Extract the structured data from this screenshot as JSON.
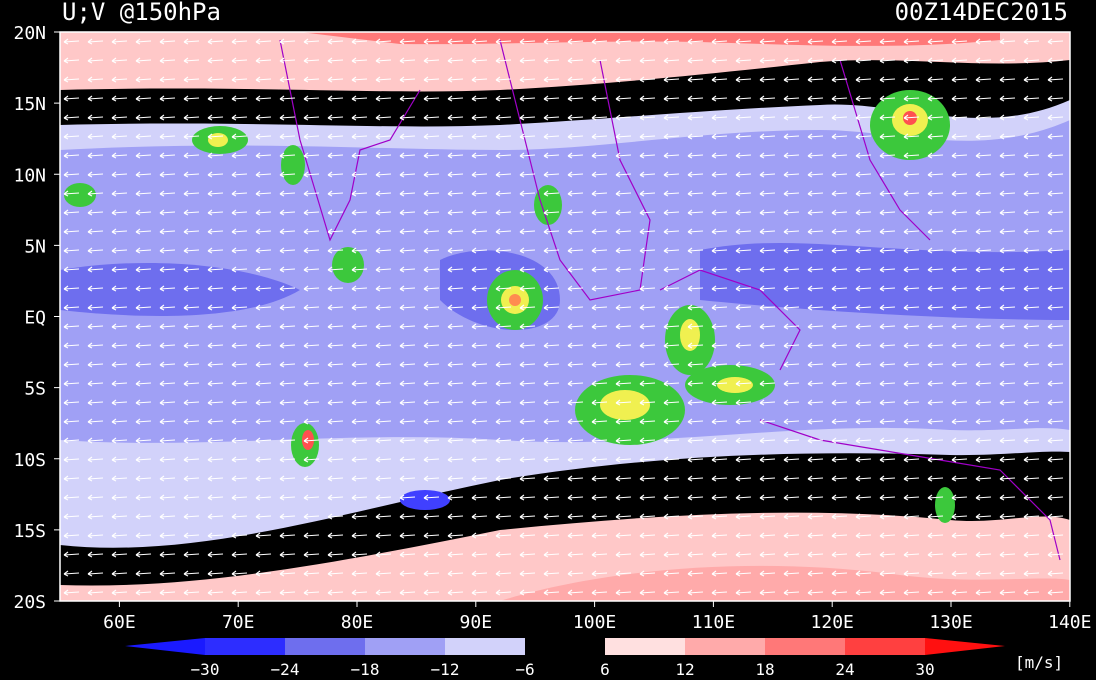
{
  "header": {
    "title": "U;V @150hPa",
    "time": "00Z14DEC2015"
  },
  "map": {
    "lat_labels": [
      "20N",
      "15N",
      "10N",
      "5N",
      "EQ",
      "5S",
      "10S",
      "15S",
      "20S"
    ],
    "lon_labels": [
      "60E",
      "70E",
      "80E",
      "90E",
      "100E",
      "110E",
      "120E",
      "130E",
      "140E"
    ]
  },
  "colorbar": {
    "labels": [
      "−30",
      "−24",
      "−18",
      "−12",
      "−6",
      "6",
      "12",
      "18",
      "24",
      "30"
    ],
    "unit": "[m/s]"
  }
}
